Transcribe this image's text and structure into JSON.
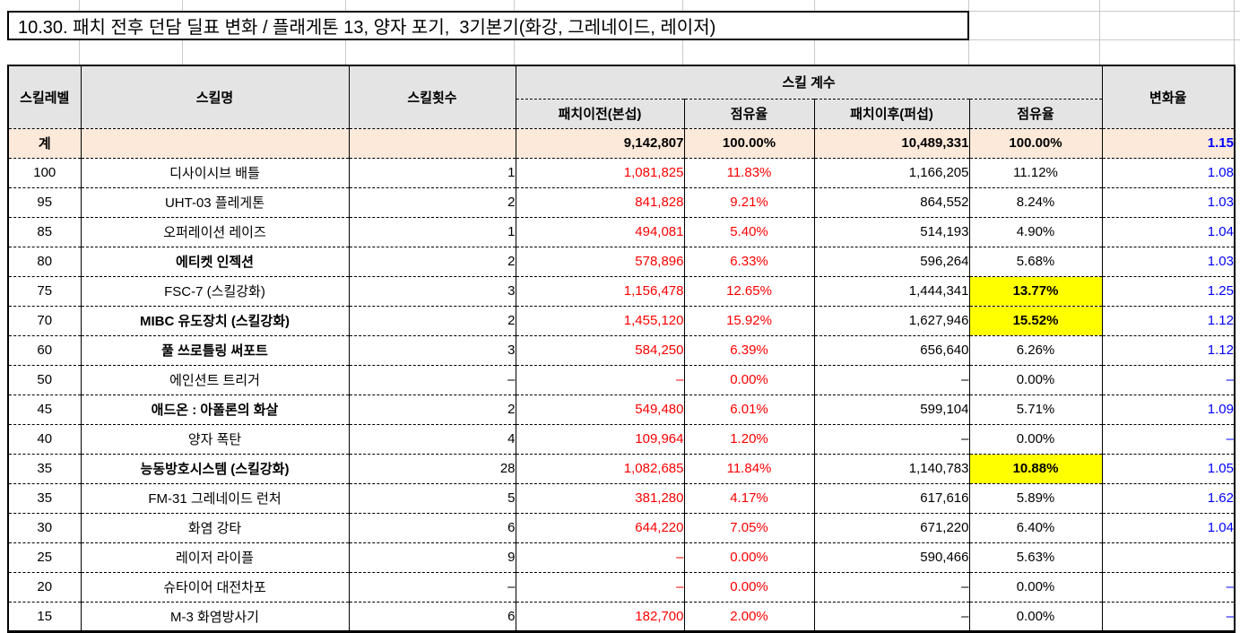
{
  "title": "10.30. 패치 전후 던담 딜표 변화 / 플래게톤 13, 양자 포기,  3기본기(화강, 그레네이드, 레이저)",
  "colors": {
    "negative_red": "#FF0000",
    "ratio_blue": "#0000FF",
    "highlight_yellow": "#FFFF00",
    "header_gray": "#E4E4E4",
    "total_row_peach": "#FDE9D9"
  },
  "table": {
    "headers": {
      "skill_level": "스킬레벨",
      "skill_name": "스킬명",
      "skill_count": "스킬횟수",
      "coeff_group": "스킬 계수",
      "before_patch": "패치이전(본섭)",
      "share_before": "점유율",
      "after_patch": "패치이후(퍼섭)",
      "share_after": "점유율",
      "change_rate": "변화율"
    },
    "total": {
      "label": "계",
      "name": "",
      "count": "",
      "before": "9,142,807",
      "share_before": "100.00%",
      "after": "10,489,331",
      "share_after": "100.00%",
      "change": "1.15"
    },
    "rows": [
      {
        "level": "100",
        "name": "디사이시브 배틀",
        "name_bold": false,
        "count": "1",
        "before": "1,081,825",
        "share_before": "11.83%",
        "after": "1,166,205",
        "share_after": "11.12%",
        "share_after_highlight": false,
        "change": "1.08"
      },
      {
        "level": "95",
        "name": "UHT-03 플레게톤",
        "name_bold": false,
        "count": "2",
        "before": "841,828",
        "share_before": "9.21%",
        "after": "864,552",
        "share_after": "8.24%",
        "share_after_highlight": false,
        "change": "1.03"
      },
      {
        "level": "85",
        "name": "오퍼레이션 레이즈",
        "name_bold": false,
        "count": "1",
        "before": "494,081",
        "share_before": "5.40%",
        "after": "514,193",
        "share_after": "4.90%",
        "share_after_highlight": false,
        "change": "1.04"
      },
      {
        "level": "80",
        "name": "에티켓 인젝션",
        "name_bold": true,
        "count": "2",
        "before": "578,896",
        "share_before": "6.33%",
        "after": "596,264",
        "share_after": "5.68%",
        "share_after_highlight": false,
        "change": "1.03"
      },
      {
        "level": "75",
        "name": "FSC-7 (스킬강화)",
        "name_bold": false,
        "count": "3",
        "before": "1,156,478",
        "share_before": "12.65%",
        "after": "1,444,341",
        "share_after": "13.77%",
        "share_after_highlight": true,
        "change": "1.25"
      },
      {
        "level": "70",
        "name": "MIBC 유도장치 (스킬강화)",
        "name_bold": true,
        "count": "2",
        "before": "1,455,120",
        "share_before": "15.92%",
        "after": "1,627,946",
        "share_after": "15.52%",
        "share_after_highlight": true,
        "change": "1.12"
      },
      {
        "level": "60",
        "name": "풀 쓰로틀링 써포트",
        "name_bold": true,
        "count": "3",
        "before": "584,250",
        "share_before": "6.39%",
        "after": "656,640",
        "share_after": "6.26%",
        "share_after_highlight": false,
        "change": "1.12"
      },
      {
        "level": "50",
        "name": "에인션트 트리거",
        "name_bold": false,
        "count": "–",
        "before": "–",
        "share_before": "0.00%",
        "after": "–",
        "share_after": "0.00%",
        "share_after_highlight": false,
        "change": "–"
      },
      {
        "level": "45",
        "name": "애드온 : 아폴론의 화살",
        "name_bold": true,
        "count": "2",
        "before": "549,480",
        "share_before": "6.01%",
        "after": "599,104",
        "share_after": "5.71%",
        "share_after_highlight": false,
        "change": "1.09"
      },
      {
        "level": "40",
        "name": "양자 폭탄",
        "name_bold": false,
        "count": "4",
        "before": "109,964",
        "share_before": "1.20%",
        "after": "–",
        "share_after": "0.00%",
        "share_after_highlight": false,
        "change": "–"
      },
      {
        "level": "35",
        "name": "능동방호시스템 (스킬강화)",
        "name_bold": true,
        "count": "28",
        "before": "1,082,685",
        "share_before": "11.84%",
        "after": "1,140,783",
        "share_after": "10.88%",
        "share_after_highlight": true,
        "change": "1.05"
      },
      {
        "level": "35",
        "name": "FM-31 그레네이드 런처",
        "name_bold": false,
        "count": "5",
        "before": "381,280",
        "share_before": "4.17%",
        "after": "617,616",
        "share_after": "5.89%",
        "share_after_highlight": false,
        "change": "1.62"
      },
      {
        "level": "30",
        "name": "화염 강타",
        "name_bold": false,
        "count": "6",
        "before": "644,220",
        "share_before": "7.05%",
        "after": "671,220",
        "share_after": "6.40%",
        "share_after_highlight": false,
        "change": "1.04"
      },
      {
        "level": "25",
        "name": "레이저 라이플",
        "name_bold": false,
        "count": "9",
        "before": "–",
        "share_before": "0.00%",
        "after": "590,466",
        "share_after": "5.63%",
        "share_after_highlight": false,
        "change": ""
      },
      {
        "level": "20",
        "name": "슈타이어 대전차포",
        "name_bold": false,
        "count": "–",
        "before": "–",
        "share_before": "0.00%",
        "after": "–",
        "share_after": "0.00%",
        "share_after_highlight": false,
        "change": "–"
      },
      {
        "level": "15",
        "name": "M-3 화염방사기",
        "name_bold": false,
        "count": "6",
        "before": "182,700",
        "share_before": "2.00%",
        "after": "–",
        "share_after": "0.00%",
        "share_after_highlight": false,
        "change": "–"
      }
    ]
  }
}
